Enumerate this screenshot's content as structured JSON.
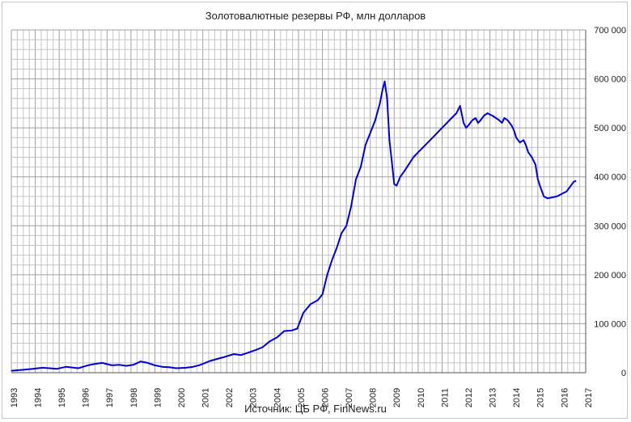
{
  "chart_data": {
    "type": "line",
    "title": "Золотовалютные резервы РФ, млн долларов",
    "source": "Источник: ЦБ РФ, FinNews.ru",
    "x_ticks": [
      "1993",
      "1994",
      "1995",
      "1996",
      "1997",
      "1998",
      "1999",
      "2000",
      "2001",
      "2002",
      "2003",
      "2004",
      "2005",
      "2006",
      "2007",
      "2008",
      "2009",
      "2010",
      "2011",
      "2012",
      "2013",
      "2014",
      "2015",
      "2016",
      "2017"
    ],
    "y_ticks": [
      "0",
      "100 000",
      "200 000",
      "300 000",
      "400 000",
      "500 000",
      "600 000",
      "700 000"
    ],
    "xlim": [
      1993,
      2017
    ],
    "ylim": [
      0,
      700000
    ],
    "grid": true,
    "line_color": "#0000dd",
    "series": [
      {
        "x": [
          1993.0,
          1993.5,
          1993.9,
          1994.3,
          1994.6,
          1994.9,
          1995.3,
          1995.8,
          1996.2,
          1996.5,
          1996.8,
          1997.2,
          1997.5,
          1997.8,
          1998.1,
          1998.4,
          1998.7,
          1999.0,
          1999.3,
          1999.6,
          1999.9,
          2000.3,
          2000.6,
          2000.9,
          2001.3,
          2001.6,
          2001.9,
          2002.3,
          2002.6,
          2002.9,
          2003.2,
          2003.5,
          2003.8,
          2004.1,
          2004.4,
          2004.7,
          2004.95,
          2005.2,
          2005.5,
          2005.8,
          2006.0,
          2006.2,
          2006.4,
          2006.6,
          2006.8,
          2007.0,
          2007.2,
          2007.4,
          2007.6,
          2007.8,
          2008.0,
          2008.2,
          2008.4,
          2008.5,
          2008.6,
          2008.7,
          2008.8,
          2008.9,
          2009.0,
          2009.1,
          2009.25,
          2009.4,
          2009.6,
          2009.8,
          2010.0,
          2010.2,
          2010.4,
          2010.6,
          2010.8,
          2011.0,
          2011.2,
          2011.4,
          2011.6,
          2011.75,
          2011.9,
          2012.0,
          2012.1,
          2012.25,
          2012.4,
          2012.5,
          2012.6,
          2012.75,
          2012.9,
          2013.0,
          2013.1,
          2013.25,
          2013.4,
          2013.5,
          2013.6,
          2013.75,
          2013.9,
          2014.0,
          2014.1,
          2014.25,
          2014.4,
          2014.5,
          2014.6,
          2014.75,
          2014.9,
          2015.0,
          2015.1,
          2015.25,
          2015.4,
          2015.6,
          2015.8,
          2016.0,
          2016.2,
          2016.35,
          2016.5,
          2016.6
        ],
        "y": [
          4000,
          6000,
          8000,
          10000,
          9000,
          8000,
          12000,
          9000,
          15000,
          18000,
          20000,
          15000,
          16000,
          14000,
          16000,
          23000,
          20000,
          15000,
          12000,
          11000,
          9000,
          10000,
          12000,
          16000,
          24000,
          28000,
          32000,
          38000,
          36000,
          41000,
          46000,
          52000,
          64000,
          72000,
          85000,
          86000,
          90000,
          122000,
          140000,
          148000,
          160000,
          200000,
          230000,
          255000,
          285000,
          300000,
          340000,
          395000,
          420000,
          465000,
          490000,
          515000,
          550000,
          575000,
          595000,
          560000,
          475000,
          430000,
          385000,
          382000,
          400000,
          410000,
          425000,
          440000,
          450000,
          460000,
          470000,
          480000,
          490000,
          500000,
          510000,
          520000,
          530000,
          545000,
          510000,
          500000,
          505000,
          515000,
          520000,
          510000,
          515000,
          525000,
          530000,
          527000,
          525000,
          520000,
          515000,
          510000,
          520000,
          515000,
          505000,
          495000,
          480000,
          470000,
          475000,
          465000,
          450000,
          440000,
          425000,
          395000,
          380000,
          360000,
          356000,
          358000,
          360000,
          365000,
          370000,
          380000,
          390000,
          392000
        ]
      }
    ]
  }
}
